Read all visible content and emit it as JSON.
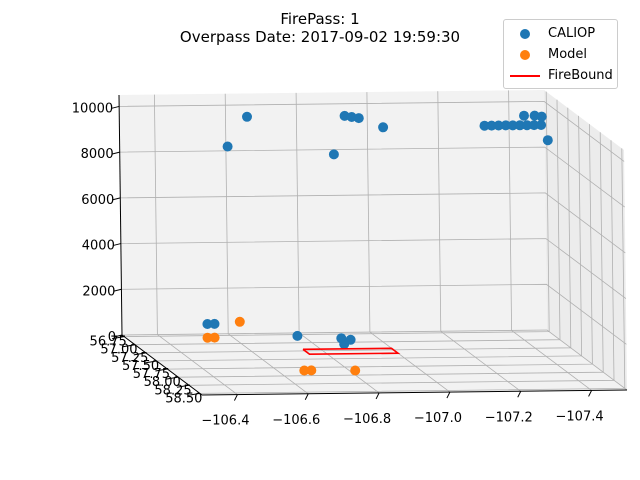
{
  "chart_data": {
    "type": "scatter",
    "projection": "3d",
    "title": "FirePass: 1",
    "subtitle": "Overpass Date: 2017-09-02 19:59:30",
    "x_axis": {
      "ticks": [
        -106.4,
        -106.6,
        -106.8,
        -107.0,
        -107.2,
        -107.4
      ],
      "tick_labels": [
        "−106.4",
        "−106.6",
        "−106.8",
        "−107.0",
        "−107.2",
        "−107.4"
      ],
      "lim": [
        -106.3,
        -107.5
      ]
    },
    "y_axis": {
      "ticks": [
        56.75,
        57.0,
        57.25,
        57.5,
        57.75,
        58.0,
        58.25,
        58.5
      ],
      "tick_labels": [
        "56.75",
        "57.00",
        "57.25",
        "57.50",
        "57.75",
        "58.00",
        "58.25",
        "58.50"
      ],
      "lim": [
        56.7,
        58.55
      ]
    },
    "z_axis": {
      "ticks": [
        0,
        2000,
        4000,
        6000,
        8000,
        10000
      ],
      "tick_labels": [
        "0",
        "2000",
        "4000",
        "6000",
        "8000",
        "10000"
      ],
      "lim": [
        0,
        10500
      ]
    },
    "grid": true,
    "legend_position": "top-right",
    "series": [
      {
        "name": "CALIOP",
        "color": "#1f77b4",
        "kind": "scatter",
        "points": [
          {
            "x": -106.36,
            "y": 58.2,
            "z": 2600
          },
          {
            "x": -106.38,
            "y": 58.2,
            "z": 2600
          },
          {
            "x": -106.52,
            "y": 57.4,
            "z": 9200
          },
          {
            "x": -106.6,
            "y": 57.2,
            "z": 10200
          },
          {
            "x": -106.65,
            "y": 57.9,
            "z": 1600
          },
          {
            "x": -106.78,
            "y": 57.85,
            "z": 1400
          },
          {
            "x": -106.8,
            "y": 57.9,
            "z": 1400
          },
          {
            "x": -106.8,
            "y": 57.75,
            "z": 1000
          },
          {
            "x": -106.82,
            "y": 57.4,
            "z": 8800
          },
          {
            "x": -106.9,
            "y": 57.0,
            "z": 9900
          },
          {
            "x": -106.92,
            "y": 57.0,
            "z": 9850
          },
          {
            "x": -106.94,
            "y": 57.0,
            "z": 9800
          },
          {
            "x": -106.99,
            "y": 57.15,
            "z": 9600
          },
          {
            "x": -107.24,
            "y": 57.45,
            "z": 10050
          },
          {
            "x": -107.26,
            "y": 57.45,
            "z": 10050
          },
          {
            "x": -107.28,
            "y": 57.45,
            "z": 10050
          },
          {
            "x": -107.3,
            "y": 57.45,
            "z": 10050
          },
          {
            "x": -107.32,
            "y": 57.45,
            "z": 10050
          },
          {
            "x": -107.34,
            "y": 57.45,
            "z": 10050
          },
          {
            "x": -107.36,
            "y": 57.45,
            "z": 10050
          },
          {
            "x": -107.38,
            "y": 57.45,
            "z": 10050
          },
          {
            "x": -107.4,
            "y": 57.45,
            "z": 10050
          },
          {
            "x": -107.37,
            "y": 57.3,
            "z": 10250
          },
          {
            "x": -107.4,
            "y": 57.3,
            "z": 10250
          },
          {
            "x": -107.42,
            "y": 57.3,
            "z": 10200
          },
          {
            "x": -107.4,
            "y": 57.6,
            "z": 9600
          }
        ]
      },
      {
        "name": "Model",
        "color": "#ff7f0e",
        "kind": "scatter",
        "points": [
          {
            "x": -106.36,
            "y": 58.2,
            "z": 2000
          },
          {
            "x": -106.38,
            "y": 58.2,
            "z": 2000
          },
          {
            "x": -106.5,
            "y": 57.8,
            "z": 2100
          },
          {
            "x": -106.65,
            "y": 58.05,
            "z": 300
          },
          {
            "x": -106.67,
            "y": 58.05,
            "z": 300
          },
          {
            "x": -106.8,
            "y": 58.0,
            "z": 200
          }
        ]
      },
      {
        "name": "FireBound",
        "color": "#ff0000",
        "kind": "polygon",
        "points": [
          {
            "x": -106.75,
            "y": 57.2,
            "z": 0
          },
          {
            "x": -107.0,
            "y": 57.2,
            "z": 0
          },
          {
            "x": -107.0,
            "y": 57.35,
            "z": 0
          },
          {
            "x": -106.75,
            "y": 57.35,
            "z": 0
          },
          {
            "x": -106.75,
            "y": 57.2,
            "z": 0
          }
        ]
      }
    ]
  }
}
